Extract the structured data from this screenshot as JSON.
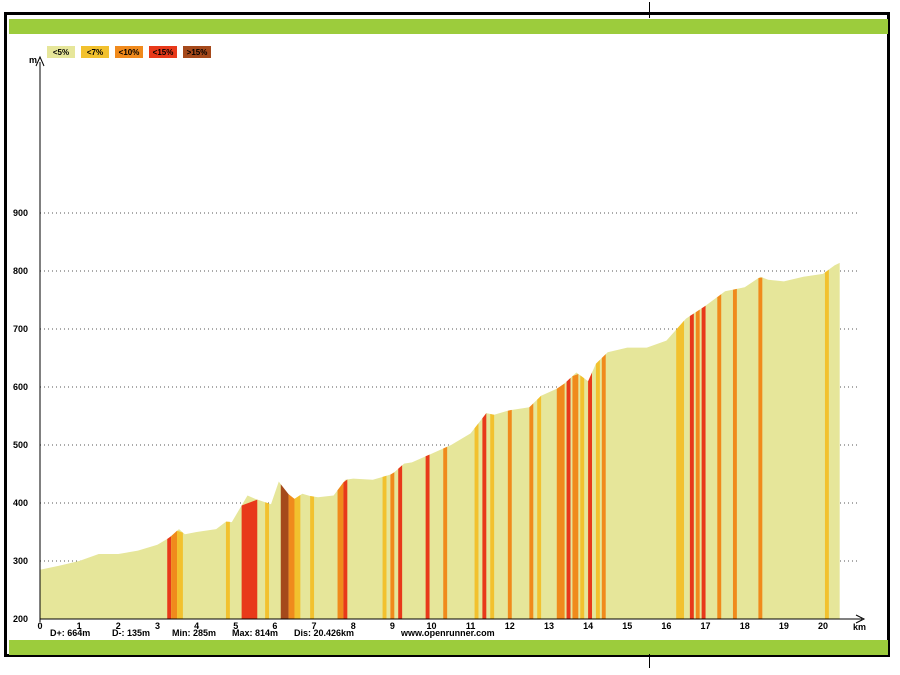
{
  "legend": [
    {
      "label": "<5%",
      "color": "#e6e69a"
    },
    {
      "label": "<7%",
      "color": "#f2c12e"
    },
    {
      "label": "<10%",
      "color": "#f08a1c"
    },
    {
      "label": "<15%",
      "color": "#e8391a"
    },
    {
      "label": ">15%",
      "color": "#a5491b"
    }
  ],
  "footer": {
    "dplus": "D+: 664m",
    "dminus": "D-: 135m",
    "min": "Min: 285m",
    "max": "Max: 814m",
    "dist": "Dis: 20.426km",
    "site": "www.openrunner.com"
  },
  "chart_data": {
    "type": "area",
    "xlabel": "km",
    "ylabel": "m",
    "xlim": [
      0,
      20.426
    ],
    "ylim": [
      200,
      950
    ],
    "x_ticks": [
      0,
      1,
      2,
      3,
      4,
      5,
      6,
      7,
      8,
      9,
      10,
      11,
      12,
      13,
      14,
      15,
      16,
      17,
      18,
      19,
      20
    ],
    "y_ticks": [
      200,
      300,
      400,
      500,
      600,
      700,
      800,
      900
    ],
    "grid": "horizontal dotted",
    "series": [
      {
        "x": [
          0,
          0.5,
          1,
          1.5,
          2,
          2.5,
          3,
          3.3,
          3.55,
          3.7,
          4.0,
          4.5,
          4.75,
          4.9,
          5.3,
          5.5,
          5.9,
          6.1,
          6.3,
          6.5,
          6.7,
          6.9,
          7.1,
          7.5,
          7.8,
          8.0,
          8.5,
          9.0,
          9.3,
          9.5,
          10.0,
          10.5,
          11.0,
          11.4,
          11.6,
          12.0,
          12.5,
          12.8,
          13.3,
          13.7,
          14.0,
          14.2,
          14.5,
          15.0,
          15.5,
          16.0,
          16.5,
          17.0,
          17.5,
          18.0,
          18.4,
          18.6,
          19.0,
          19.5,
          20.0,
          20.3,
          20.426
        ],
        "y": [
          285,
          292,
          300,
          312,
          312,
          318,
          328,
          340,
          355,
          346,
          350,
          355,
          368,
          367,
          413,
          407,
          398,
          437,
          418,
          407,
          416,
          412,
          410,
          413,
          440,
          442,
          440,
          450,
          468,
          470,
          485,
          500,
          520,
          555,
          552,
          560,
          565,
          585,
          600,
          625,
          610,
          640,
          660,
          668,
          668,
          680,
          718,
          740,
          765,
          772,
          790,
          785,
          782,
          790,
          795,
          810,
          814
        ]
      }
    ],
    "slope_bands": [
      {
        "x0": 3.25,
        "x1": 3.35,
        "class": "<15%"
      },
      {
        "x0": 3.35,
        "x1": 3.5,
        "class": "<10%"
      },
      {
        "x0": 3.5,
        "x1": 3.65,
        "class": "<7%"
      },
      {
        "x0": 4.75,
        "x1": 4.85,
        "class": "<7%"
      },
      {
        "x0": 5.15,
        "x1": 5.55,
        "class": "<15%"
      },
      {
        "x0": 5.75,
        "x1": 5.85,
        "class": "<7%"
      },
      {
        "x0": 6.15,
        "x1": 6.35,
        "class": ">15%"
      },
      {
        "x0": 6.35,
        "x1": 6.5,
        "class": "<10%"
      },
      {
        "x0": 6.5,
        "x1": 6.65,
        "class": "<7%"
      },
      {
        "x0": 6.9,
        "x1": 7.0,
        "class": "<7%"
      },
      {
        "x0": 7.6,
        "x1": 7.75,
        "class": "<10%"
      },
      {
        "x0": 7.75,
        "x1": 7.85,
        "class": "<15%"
      },
      {
        "x0": 8.75,
        "x1": 8.85,
        "class": "<7%"
      },
      {
        "x0": 8.95,
        "x1": 9.05,
        "class": "<10%"
      },
      {
        "x0": 9.15,
        "x1": 9.25,
        "class": "<15%"
      },
      {
        "x0": 9.85,
        "x1": 9.95,
        "class": "<15%"
      },
      {
        "x0": 10.3,
        "x1": 10.4,
        "class": "<10%"
      },
      {
        "x0": 11.1,
        "x1": 11.2,
        "class": "<7%"
      },
      {
        "x0": 11.3,
        "x1": 11.4,
        "class": "<15%"
      },
      {
        "x0": 11.5,
        "x1": 11.6,
        "class": "<7%"
      },
      {
        "x0": 11.95,
        "x1": 12.05,
        "class": "<10%"
      },
      {
        "x0": 12.5,
        "x1": 12.6,
        "class": "<10%"
      },
      {
        "x0": 12.7,
        "x1": 12.8,
        "class": "<7%"
      },
      {
        "x0": 13.2,
        "x1": 13.4,
        "class": "<10%"
      },
      {
        "x0": 13.45,
        "x1": 13.55,
        "class": "<15%"
      },
      {
        "x0": 13.6,
        "x1": 13.75,
        "class": "<10%"
      },
      {
        "x0": 13.8,
        "x1": 13.9,
        "class": "<7%"
      },
      {
        "x0": 14.0,
        "x1": 14.1,
        "class": "<15%"
      },
      {
        "x0": 14.2,
        "x1": 14.3,
        "class": "<7%"
      },
      {
        "x0": 14.35,
        "x1": 14.45,
        "class": "<10%"
      },
      {
        "x0": 16.25,
        "x1": 16.45,
        "class": "<7%"
      },
      {
        "x0": 16.6,
        "x1": 16.7,
        "class": "<15%"
      },
      {
        "x0": 16.75,
        "x1": 16.85,
        "class": "<10%"
      },
      {
        "x0": 16.9,
        "x1": 17.0,
        "class": "<15%"
      },
      {
        "x0": 17.3,
        "x1": 17.4,
        "class": "<10%"
      },
      {
        "x0": 17.7,
        "x1": 17.8,
        "class": "<10%"
      },
      {
        "x0": 18.35,
        "x1": 18.45,
        "class": "<10%"
      },
      {
        "x0": 20.05,
        "x1": 20.15,
        "class": "<7%"
      }
    ]
  }
}
